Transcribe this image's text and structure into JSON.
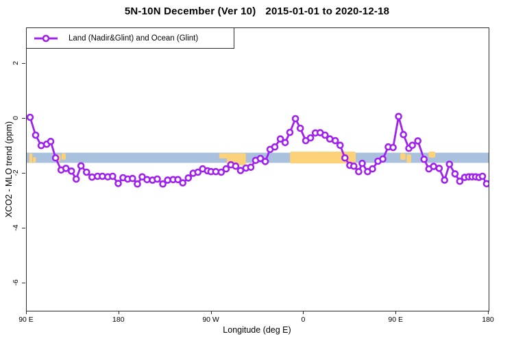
{
  "title": {
    "part1": "5N-10N December (Ver 10)",
    "part2": "2015-01-01 to 2020-12-18"
  },
  "legend": {
    "label": "Land (Nadir&Glint) and Ocean (Glint)"
  },
  "colors": {
    "series": "#A020F0",
    "marker_fill": "#ffffff",
    "ocean_band": "#A9C1DC",
    "land": "#FBD179",
    "axis": "#2b2b2b"
  },
  "chart_data": {
    "type": "line",
    "title": "5N-10N December (Ver 10)  2015-01-01 to 2020-12-18",
    "xlabel": "Longitude (deg E)",
    "ylabel": "XCO2 - MLO trend (ppm)",
    "xlim": [
      90,
      540
    ],
    "ylim": [
      -7.0,
      3.3
    ],
    "grid": false,
    "legend_position": "top-left",
    "xticks": [
      {
        "pos": 90,
        "label": "90 E"
      },
      {
        "pos": 180,
        "label": "180"
      },
      {
        "pos": 270,
        "label": "90 W"
      },
      {
        "pos": 360,
        "label": "0"
      },
      {
        "pos": 450,
        "label": "90 E"
      },
      {
        "pos": 540,
        "label": "180"
      }
    ],
    "yticks": [
      {
        "pos": 2,
        "label": "2"
      },
      {
        "pos": 0,
        "label": "0"
      },
      {
        "pos": -2,
        "label": "-2"
      },
      {
        "pos": -4,
        "label": "-4"
      },
      {
        "pos": -6,
        "label": "-6"
      }
    ],
    "ocean_band": {
      "y0": -1.24,
      "y1": -1.61,
      "note": "map strip of 5N-10N latitude band"
    },
    "land_blocks": [
      {
        "x0": 92.5,
        "x1": 95.5,
        "y0": -1.26,
        "y1": -1.62
      },
      {
        "x0": 96.0,
        "x1": 99.0,
        "y0": -1.4,
        "y1": -1.6
      },
      {
        "x0": 119.5,
        "x1": 123.0,
        "y0": -1.3,
        "y1": -1.55
      },
      {
        "x0": 124.0,
        "x1": 128.0,
        "y0": -1.26,
        "y1": -1.5
      },
      {
        "x0": 277.5,
        "x1": 285.5,
        "y0": -1.26,
        "y1": -1.45
      },
      {
        "x0": 285.0,
        "x1": 303.5,
        "y0": -1.26,
        "y1": -1.7
      },
      {
        "x0": 346.5,
        "x1": 410.5,
        "y0": -1.2,
        "y1": -1.63
      },
      {
        "x0": 454.0,
        "x1": 459.0,
        "y0": -1.26,
        "y1": -1.5
      },
      {
        "x0": 460.0,
        "x1": 464.5,
        "y0": -1.3,
        "y1": -1.6
      },
      {
        "x0": 481.5,
        "x1": 488.0,
        "y0": -1.2,
        "y1": -1.42
      }
    ],
    "series": [
      {
        "name": "Land (Nadir&Glint) and Ocean (Glint)",
        "marker": "open-circle",
        "points": [
          [
            93.3,
            0.05
          ],
          [
            98.7,
            -0.6
          ],
          [
            104.1,
            -0.98
          ],
          [
            109.4,
            -0.93
          ],
          [
            113.4,
            -0.83
          ],
          [
            118.1,
            -1.43
          ],
          [
            123.5,
            -1.87
          ],
          [
            128.2,
            -1.81
          ],
          [
            133.5,
            -1.91
          ],
          [
            138.2,
            -2.2
          ],
          [
            142.9,
            -1.72
          ],
          [
            148.3,
            -1.95
          ],
          [
            153.6,
            -2.13
          ],
          [
            159.0,
            -2.1
          ],
          [
            163.7,
            -2.1
          ],
          [
            169.0,
            -2.12
          ],
          [
            173.7,
            -2.1
          ],
          [
            179.1,
            -2.36
          ],
          [
            183.8,
            -2.15
          ],
          [
            188.4,
            -2.2
          ],
          [
            193.1,
            -2.18
          ],
          [
            197.8,
            -2.38
          ],
          [
            202.5,
            -2.12
          ],
          [
            207.2,
            -2.22
          ],
          [
            212.5,
            -2.24
          ],
          [
            217.2,
            -2.2
          ],
          [
            222.6,
            -2.38
          ],
          [
            227.3,
            -2.24
          ],
          [
            232.6,
            -2.22
          ],
          [
            237.3,
            -2.22
          ],
          [
            242.0,
            -2.34
          ],
          [
            247.4,
            -2.16
          ],
          [
            252.1,
            -1.99
          ],
          [
            256.8,
            -1.95
          ],
          [
            261.4,
            -1.83
          ],
          [
            266.1,
            -1.9
          ],
          [
            269.5,
            -1.93
          ],
          [
            274.2,
            -1.93
          ],
          [
            279.5,
            -1.95
          ],
          [
            284.2,
            -1.83
          ],
          [
            288.9,
            -1.68
          ],
          [
            293.6,
            -1.73
          ],
          [
            298.3,
            -1.89
          ],
          [
            303.6,
            -1.8
          ],
          [
            308.3,
            -1.77
          ],
          [
            313.0,
            -1.52
          ],
          [
            317.7,
            -1.45
          ],
          [
            322.4,
            -1.56
          ],
          [
            327.1,
            -1.12
          ],
          [
            331.7,
            -1.03
          ],
          [
            337.1,
            -0.74
          ],
          [
            341.8,
            -0.87
          ],
          [
            346.4,
            -0.5
          ],
          [
            351.8,
            0.0
          ],
          [
            356.5,
            -0.35
          ],
          [
            361.8,
            -0.8
          ],
          [
            366.5,
            -0.7
          ],
          [
            371.2,
            -0.52
          ],
          [
            375.9,
            -0.51
          ],
          [
            380.6,
            -0.6
          ],
          [
            385.3,
            -0.74
          ],
          [
            390.6,
            -0.8
          ],
          [
            395.3,
            -0.97
          ],
          [
            400.0,
            -1.43
          ],
          [
            404.7,
            -1.7
          ],
          [
            408.7,
            -1.73
          ],
          [
            413.4,
            -1.93
          ],
          [
            416.8,
            -1.63
          ],
          [
            422.1,
            -1.93
          ],
          [
            426.8,
            -1.83
          ],
          [
            432.2,
            -1.55
          ],
          [
            436.9,
            -1.47
          ],
          [
            442.2,
            -1.03
          ],
          [
            446.9,
            -1.05
          ],
          [
            452.3,
            0.08
          ],
          [
            457.0,
            -0.58
          ],
          [
            462.3,
            -1.08
          ],
          [
            465.7,
            -0.97
          ],
          [
            471.0,
            -0.81
          ],
          [
            477.1,
            -1.48
          ],
          [
            481.8,
            -1.83
          ],
          [
            486.4,
            -1.74
          ],
          [
            491.8,
            -1.81
          ],
          [
            497.1,
            -2.24
          ],
          [
            501.8,
            -1.66
          ],
          [
            507.2,
            -2.01
          ],
          [
            511.9,
            -2.28
          ],
          [
            516.6,
            -2.14
          ],
          [
            520.6,
            -2.12
          ],
          [
            523.9,
            -2.12
          ],
          [
            527.3,
            -2.12
          ],
          [
            530.6,
            -2.14
          ],
          [
            534.0,
            -2.1
          ],
          [
            538.0,
            -2.37
          ]
        ]
      }
    ]
  }
}
